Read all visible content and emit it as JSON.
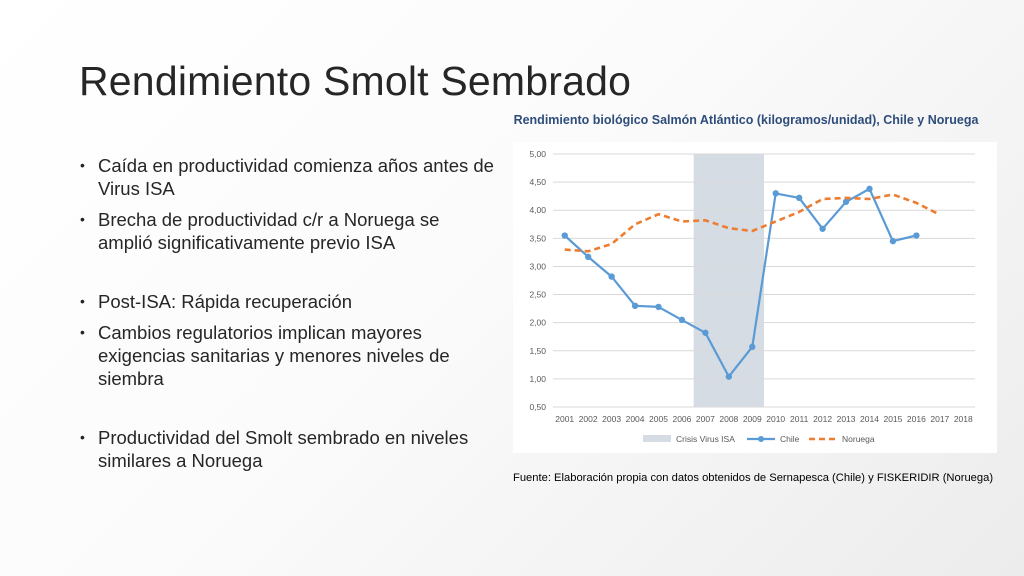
{
  "slide": {
    "title": "Rendimiento Smolt Sembrado",
    "bullets": [
      "Caída en productividad comienza años antes de Virus ISA",
      "Brecha de productividad c/r a Noruega se amplió significativamente previo ISA",
      "Post-ISA: Rápida recuperación",
      "Cambios regulatorios implican mayores exigencias sanitarias y menores niveles de siembra",
      "Productividad del Smolt sembrado en niveles similares a Noruega"
    ],
    "source": "Fuente: Elaboración propia con datos obtenidos de Sernapesca (Chile) y FISKERIDIR (Noruega)"
  },
  "chart_data": {
    "type": "line",
    "title": "Rendimiento biológico Salmón Atlántico (kilogramos/unidad), Chile y Noruega",
    "categories": [
      "2001",
      "2002",
      "2003",
      "2004",
      "2005",
      "2006",
      "2007",
      "2008",
      "2009",
      "2010",
      "2011",
      "2012",
      "2013",
      "2014",
      "2015",
      "2016",
      "2017",
      "2018"
    ],
    "ylim": [
      0.5,
      5.0
    ],
    "yticks": [
      "5,00",
      "4,50",
      "4,00",
      "3,50",
      "3,00",
      "2,50",
      "2,00",
      "1,50",
      "1,00",
      "0,50"
    ],
    "grid": true,
    "legend_position": "bottom",
    "shaded_region": {
      "name": "Crisis Virus ISA",
      "from": "2007",
      "to": "2009",
      "color": "#d6dce4"
    },
    "series": [
      {
        "name": "Chile",
        "color": "#5b9bd5",
        "style": "solid-markers",
        "values": [
          3.55,
          3.17,
          2.82,
          2.3,
          2.28,
          2.05,
          1.82,
          1.04,
          1.57,
          4.3,
          4.22,
          3.67,
          4.15,
          4.38,
          3.45,
          3.55,
          null,
          null
        ]
      },
      {
        "name": "Noruega",
        "color": "#ed7d31",
        "style": "dashed",
        "values": [
          3.3,
          3.27,
          3.4,
          3.75,
          3.93,
          3.8,
          3.82,
          3.68,
          3.63,
          3.8,
          3.97,
          4.2,
          4.22,
          4.2,
          4.28,
          4.13,
          3.92,
          null
        ]
      }
    ]
  }
}
